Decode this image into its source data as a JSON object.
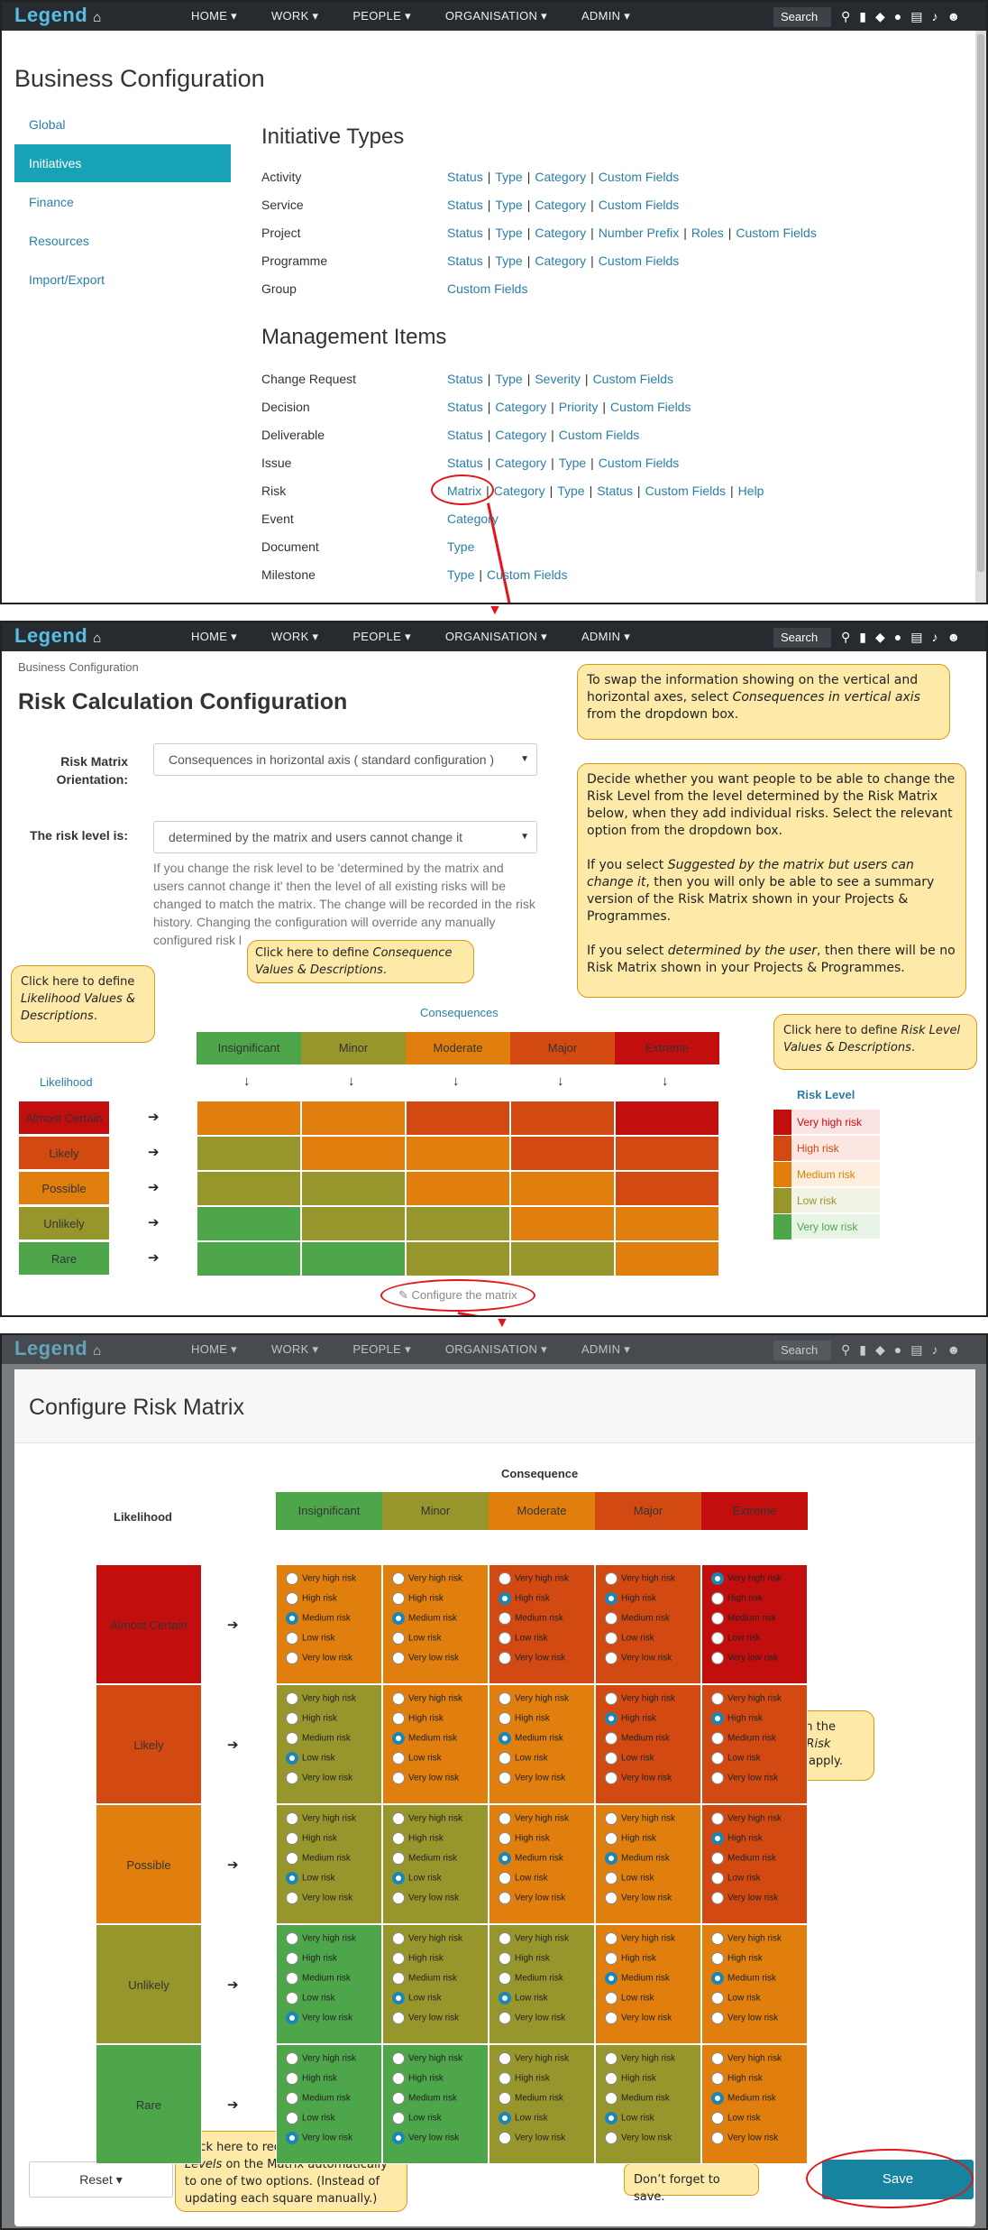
{
  "nav": {
    "logo": "Legend",
    "menu": [
      "HOME ▾",
      "WORK ▾",
      "PEOPLE ▾",
      "ORGANISATION ▾",
      "ADMIN ▾"
    ],
    "search": "Search",
    "icons": [
      "search-icon",
      "bookmark-icon",
      "tag-icon",
      "chat-icon",
      "document-icon",
      "bell-icon",
      "user-icon"
    ]
  },
  "screen1": {
    "title": "Business Configuration",
    "sidebar": [
      "Global",
      "Initiatives",
      "Finance",
      "Resources",
      "Import/Export"
    ],
    "active_sidebar": "Initiatives",
    "initiative_types_title": "Initiative Types",
    "initiative_types": [
      {
        "label": "Activity",
        "links": [
          "Status",
          "Type",
          "Category",
          "Custom Fields"
        ]
      },
      {
        "label": "Service",
        "links": [
          "Status",
          "Type",
          "Category",
          "Custom Fields"
        ]
      },
      {
        "label": "Project",
        "links": [
          "Status",
          "Type",
          "Category",
          "Number Prefix",
          "Roles",
          "Custom Fields"
        ]
      },
      {
        "label": "Programme",
        "links": [
          "Status",
          "Type",
          "Category",
          "Custom Fields"
        ]
      },
      {
        "label": "Group",
        "links": [
          "Custom Fields"
        ]
      }
    ],
    "management_title": "Management Items",
    "management_items": [
      {
        "label": "Change Request",
        "links": [
          "Status",
          "Type",
          "Severity",
          "Custom Fields"
        ]
      },
      {
        "label": "Decision",
        "links": [
          "Status",
          "Category",
          "Priority",
          "Custom Fields"
        ]
      },
      {
        "label": "Deliverable",
        "links": [
          "Status",
          "Category",
          "Custom Fields"
        ]
      },
      {
        "label": "Issue",
        "links": [
          "Status",
          "Category",
          "Type",
          "Custom Fields"
        ]
      },
      {
        "label": "Risk",
        "links": [
          "Matrix",
          "Category",
          "Type",
          "Status",
          "Custom Fields",
          "Help"
        ]
      },
      {
        "label": "Event",
        "links": [
          "Category"
        ]
      },
      {
        "label": "Document",
        "links": [
          "Type"
        ]
      },
      {
        "label": "Milestone",
        "links": [
          "Type",
          "Custom Fields"
        ]
      }
    ]
  },
  "screen2": {
    "breadcrumb": "Business Configuration",
    "title": "Risk Calculation Configuration",
    "orientation_label": "Risk Matrix Orientation:",
    "orientation_value": "Consequences in horizontal axis ( standard configuration )",
    "risk_level_label": "The risk level is:",
    "risk_level_value": "determined by the matrix and users cannot change it",
    "help_text": "If you change the risk level to be 'determined by the matrix and users cannot change it' then the level of all existing risks will be changed to match the matrix. The change will be recorded in the risk history. Changing the configuration will override any manually configured risk l",
    "consequences_link": "Consequences",
    "likelihood_link": "Likelihood",
    "risk_level_link": "Risk Level",
    "configure_link": "Configure the matrix",
    "callout_axes": "To swap the information showing on the vertical and horizontal axes, select <em>Consequences in vertical axis</em> from the dropdown box.",
    "callout_level": "Decide whether you want people to be able to change the Risk Level from the level determined by the Risk Matrix below, when they add individual risks.  Select the relevant option from the dropdown box.<br><br>If you select <em>Suggested by the matrix but users can change it</em>, then you will only be able to see a summary version of the Risk Matrix shown in your Projects &amp; Programmes.<br><br>If you select <em>determined by the user</em>, then there will be no Risk Matrix shown in your Projects &amp; Programmes.",
    "callout_consequence": "Click here to define <em>Consequence Values &amp; Descriptions</em>.",
    "callout_likelihood": "Click here to define <em>Likelihood Values &amp; Descriptions</em>.",
    "callout_risklevel": "Click here to define <em>Risk Level Values &amp; Descriptions</em>."
  },
  "matrix": {
    "consequences": [
      "Insignificant",
      "Minor",
      "Moderate",
      "Major",
      "Extreme"
    ],
    "consequence_colors": [
      "#4ea64a",
      "#97962c",
      "#e07f0d",
      "#d24a12",
      "#c30e0e"
    ],
    "likelihoods": [
      "Almost Certain",
      "Likely",
      "Possible",
      "Unlikely",
      "Rare"
    ],
    "likelihood_colors": [
      "#c30e0e",
      "#d24a12",
      "#e07f0d",
      "#97962c",
      "#4ea64a"
    ],
    "risk_levels": [
      "Very high risk",
      "High risk",
      "Medium risk",
      "Low risk",
      "Very low risk"
    ],
    "risk_level_colors": [
      "#c30e0e",
      "#d24a12",
      "#e07f0d",
      "#97962c",
      "#4ea64a"
    ],
    "cells": [
      [
        2,
        2,
        1,
        1,
        0
      ],
      [
        3,
        2,
        2,
        1,
        1
      ],
      [
        3,
        3,
        2,
        2,
        1
      ],
      [
        4,
        3,
        3,
        2,
        2
      ],
      [
        4,
        4,
        3,
        3,
        2
      ]
    ]
  },
  "screen3": {
    "title": "Configure Risk Matrix",
    "consequence_header": "Consequence",
    "likelihood_header": "Likelihood",
    "reset_label": "Reset ▾",
    "save_label": "Save",
    "callout_square": "For each square on the Matrix, select the <em>Risk Level</em> you want to apply.",
    "callout_reset": "Click here to reconfigure the <em>Risk Levels</em> on the Matrix automatically to one of two options. (Instead of updating each square manually.)",
    "callout_save": "Don’t forget to save."
  }
}
